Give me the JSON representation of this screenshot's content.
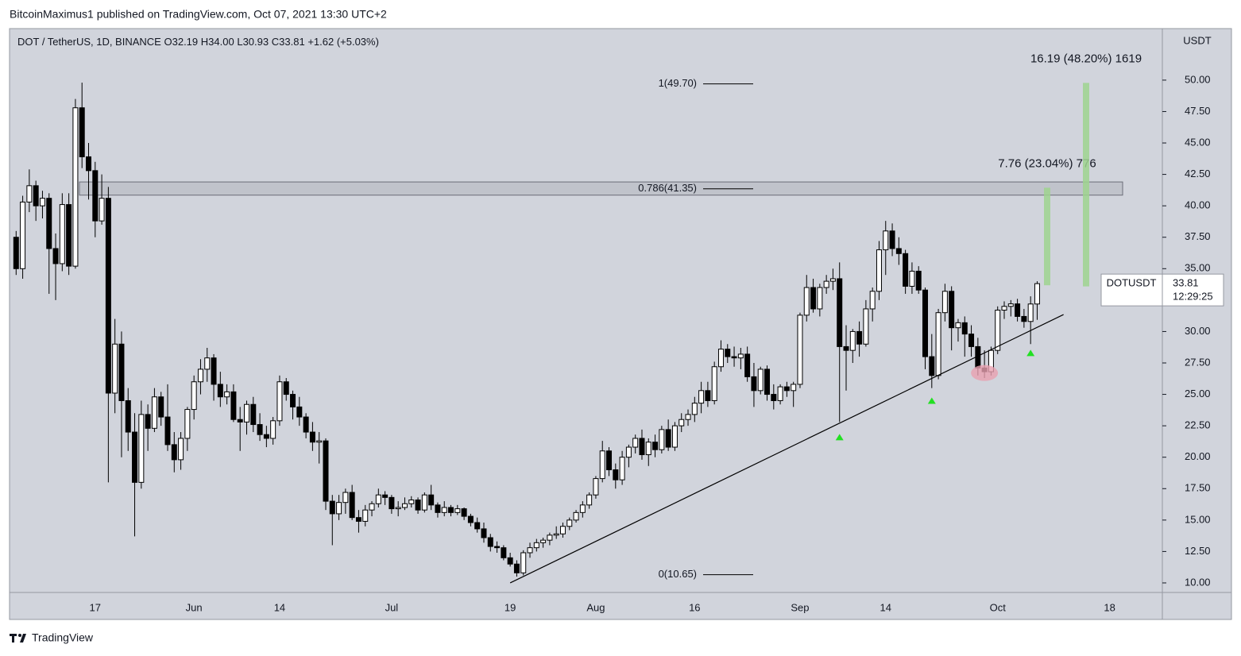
{
  "header": {
    "published": "BitcoinMaximus1 published on TradingView.com, Oct 07, 2021 13:30 UTC+2",
    "brand": "TradingView"
  },
  "chart_data": {
    "type": "candlestick",
    "title": "DOT / TetherUS, 1D, BINANCE",
    "ohlc_header": [
      {
        "key": "O",
        "value": "32.19"
      },
      {
        "key": "H",
        "value": "34.00"
      },
      {
        "key": "L",
        "value": "30.93"
      },
      {
        "key": "C",
        "value": "33.81"
      }
    ],
    "change": "+1.62 (+5.03%)",
    "y_unit": "USDT",
    "symbol": "DOTUSDT",
    "countdown": "12:29:25",
    "x": [
      "2021-05-05",
      "2021-05-06",
      "2021-05-07",
      "2021-05-08",
      "2021-05-09",
      "2021-05-10",
      "2021-05-11",
      "2021-05-12",
      "2021-05-13",
      "2021-05-14",
      "2021-05-15",
      "2021-05-16",
      "2021-05-17",
      "2021-05-18",
      "2021-05-19",
      "2021-05-20",
      "2021-05-21",
      "2021-05-22",
      "2021-05-23",
      "2021-05-24",
      "2021-05-25",
      "2021-05-26",
      "2021-05-27",
      "2021-05-28",
      "2021-05-29",
      "2021-05-30",
      "2021-05-31",
      "2021-06-01",
      "2021-06-02",
      "2021-06-03",
      "2021-06-04",
      "2021-06-05",
      "2021-06-06",
      "2021-06-07",
      "2021-06-08",
      "2021-06-09",
      "2021-06-10",
      "2021-06-11",
      "2021-06-12",
      "2021-06-13",
      "2021-06-14",
      "2021-06-15",
      "2021-06-16",
      "2021-06-17",
      "2021-06-18",
      "2021-06-19",
      "2021-06-20",
      "2021-06-21",
      "2021-06-22",
      "2021-06-23",
      "2021-06-24",
      "2021-06-25",
      "2021-06-26",
      "2021-06-27",
      "2021-06-28",
      "2021-06-29",
      "2021-06-30",
      "2021-07-01",
      "2021-07-02",
      "2021-07-03",
      "2021-07-04",
      "2021-07-05",
      "2021-07-06",
      "2021-07-07",
      "2021-07-08",
      "2021-07-09",
      "2021-07-10",
      "2021-07-11",
      "2021-07-12",
      "2021-07-13",
      "2021-07-14",
      "2021-07-15",
      "2021-07-16",
      "2021-07-17",
      "2021-07-18",
      "2021-07-19",
      "2021-07-20",
      "2021-07-21",
      "2021-07-22",
      "2021-07-23",
      "2021-07-24",
      "2021-07-25",
      "2021-07-26",
      "2021-07-27",
      "2021-07-28",
      "2021-07-29",
      "2021-07-30",
      "2021-07-31",
      "2021-08-01",
      "2021-08-02",
      "2021-08-03",
      "2021-08-04",
      "2021-08-05",
      "2021-08-06",
      "2021-08-07",
      "2021-08-08",
      "2021-08-09",
      "2021-08-10",
      "2021-08-11",
      "2021-08-12",
      "2021-08-13",
      "2021-08-14",
      "2021-08-15",
      "2021-08-16",
      "2021-08-17",
      "2021-08-18",
      "2021-08-19",
      "2021-08-20",
      "2021-08-21",
      "2021-08-22",
      "2021-08-23",
      "2021-08-24",
      "2021-08-25",
      "2021-08-26",
      "2021-08-27",
      "2021-08-28",
      "2021-08-29",
      "2021-08-30",
      "2021-08-31",
      "2021-09-01",
      "2021-09-02",
      "2021-09-03",
      "2021-09-04",
      "2021-09-05",
      "2021-09-06",
      "2021-09-07",
      "2021-09-08",
      "2021-09-09",
      "2021-09-10",
      "2021-09-11",
      "2021-09-12",
      "2021-09-13",
      "2021-09-14",
      "2021-09-15",
      "2021-09-16",
      "2021-09-17",
      "2021-09-18",
      "2021-09-19",
      "2021-09-20",
      "2021-09-21",
      "2021-09-22",
      "2021-09-23",
      "2021-09-24",
      "2021-09-25",
      "2021-09-26",
      "2021-09-27",
      "2021-09-28",
      "2021-09-29",
      "2021-09-30",
      "2021-10-01",
      "2021-10-02",
      "2021-10-03",
      "2021-10-04",
      "2021-10-05",
      "2021-10-06",
      "2021-10-07"
    ],
    "open": [
      37.5,
      35.0,
      40.3,
      41.6,
      40.0,
      40.6,
      36.6,
      35.4,
      40.1,
      35.2,
      47.8,
      43.9,
      42.8,
      38.8,
      40.6,
      25.1,
      29.0,
      24.5,
      22.0,
      18.0,
      23.4,
      22.3,
      24.8,
      23.2,
      21.0,
      19.8,
      21.5,
      23.8,
      26.0,
      27.0,
      27.9,
      25.8,
      24.8,
      25.2,
      23.0,
      22.8,
      24.2,
      22.6,
      21.8,
      21.5,
      22.9,
      26.0,
      25.0,
      24.0,
      23.2,
      22.0,
      21.2,
      21.3,
      16.5,
      15.5,
      16.4,
      17.2,
      15.2,
      14.9,
      15.8,
      16.3,
      17.0,
      16.8,
      15.9,
      16.0,
      16.3,
      16.6,
      15.8,
      17.0,
      16.2,
      15.6,
      16.0,
      15.6,
      15.9,
      15.3,
      14.8,
      14.3,
      13.6,
      12.9,
      12.8,
      12.0,
      11.5,
      10.8,
      12.4,
      12.8,
      13.2,
      13.4,
      13.8,
      13.9,
      14.5,
      15.0,
      15.6,
      16.2,
      17.0,
      18.3,
      20.5,
      19.0,
      18.2,
      20.0,
      20.8,
      21.5,
      20.2,
      21.2,
      20.6,
      22.2,
      20.8,
      22.5,
      23.0,
      23.4,
      24.3,
      25.3,
      24.5,
      27.2,
      28.6,
      28.0,
      27.9,
      28.2,
      26.4,
      25.3,
      27.0,
      25.0,
      24.5,
      25.6,
      25.3,
      25.8,
      31.3,
      33.5,
      31.8,
      33.5,
      34.0,
      34.2,
      28.8,
      28.5,
      30.0,
      29.0,
      31.8,
      33.2,
      36.5,
      38.0,
      36.6,
      36.2,
      33.6,
      34.8,
      33.3,
      28.0,
      26.5,
      31.5,
      33.2,
      30.3,
      30.7,
      29.8,
      28.8,
      27.1,
      26.8,
      28.5,
      31.7,
      32.0,
      32.2,
      31.2,
      30.8,
      32.19
    ],
    "high": [
      38.0,
      40.8,
      42.9,
      42.0,
      41.2,
      41.0,
      37.8,
      41.0,
      41.0,
      48.5,
      49.8,
      45.0,
      43.5,
      42.5,
      41.5,
      31.0,
      30.0,
      25.5,
      23.5,
      24.5,
      24.2,
      25.5,
      25.2,
      25.8,
      22.0,
      22.0,
      24.0,
      26.5,
      27.8,
      28.7,
      28.2,
      26.8,
      25.8,
      25.8,
      24.0,
      24.5,
      24.8,
      23.5,
      22.5,
      23.2,
      26.5,
      26.3,
      25.3,
      24.8,
      23.5,
      22.8,
      22.0,
      21.5,
      17.0,
      17.0,
      17.5,
      17.8,
      15.8,
      16.2,
      16.5,
      17.5,
      17.3,
      17.0,
      16.5,
      16.8,
      16.9,
      16.8,
      17.2,
      17.8,
      16.4,
      16.5,
      16.2,
      16.2,
      16.0,
      15.5,
      15.2,
      14.8,
      13.9,
      13.3,
      13.0,
      12.4,
      11.8,
      12.6,
      13.2,
      13.5,
      13.6,
      14.0,
      14.5,
      14.8,
      15.2,
      15.8,
      16.5,
      17.2,
      18.5,
      21.3,
      20.8,
      19.5,
      20.5,
      21.0,
      21.8,
      22.2,
      21.5,
      21.8,
      22.5,
      23.0,
      22.8,
      23.5,
      23.8,
      24.8,
      26.0,
      26.0,
      27.6,
      29.3,
      29.0,
      28.8,
      28.7,
      28.8,
      27.5,
      27.2,
      27.3,
      25.8,
      25.8,
      26.0,
      26.0,
      31.5,
      34.5,
      34.2,
      33.8,
      34.5,
      35.0,
      35.5,
      30.5,
      30.2,
      30.8,
      32.5,
      33.5,
      37.2,
      38.8,
      38.6,
      37.5,
      36.5,
      35.5,
      35.2,
      33.5,
      29.8,
      31.8,
      33.8,
      33.6,
      31.0,
      31.2,
      30.5,
      29.5,
      28.5,
      28.8,
      32.0,
      32.4,
      32.5,
      32.6,
      31.8,
      32.8,
      34.0
    ],
    "low": [
      34.5,
      34.2,
      39.5,
      38.8,
      39.0,
      33.0,
      32.5,
      34.8,
      34.5,
      35.0,
      43.0,
      40.5,
      37.5,
      38.5,
      18.0,
      23.5,
      20.0,
      20.5,
      13.7,
      17.5,
      20.5,
      22.0,
      22.5,
      20.5,
      18.8,
      19.0,
      20.5,
      23.0,
      25.0,
      26.0,
      24.5,
      24.0,
      24.2,
      22.8,
      20.5,
      21.8,
      22.0,
      21.3,
      20.8,
      21.0,
      22.5,
      24.5,
      23.0,
      22.5,
      21.5,
      20.5,
      19.5,
      15.8,
      13.0,
      15.0,
      15.5,
      15.0,
      14.0,
      14.5,
      15.3,
      16.0,
      16.2,
      15.5,
      15.3,
      15.8,
      16.0,
      15.5,
      15.6,
      15.8,
      15.2,
      15.3,
      15.3,
      15.4,
      15.0,
      14.5,
      14.0,
      13.2,
      12.5,
      12.4,
      11.8,
      11.3,
      10.5,
      10.6,
      12.0,
      12.5,
      12.8,
      13.0,
      13.5,
      13.6,
      14.2,
      14.8,
      15.2,
      15.9,
      16.7,
      18.0,
      18.5,
      17.5,
      17.8,
      19.2,
      20.3,
      19.8,
      19.3,
      20.0,
      20.3,
      20.5,
      20.5,
      22.0,
      22.5,
      22.8,
      23.5,
      24.0,
      24.2,
      26.8,
      27.5,
      27.2,
      27.0,
      26.0,
      24.0,
      25.0,
      24.5,
      23.8,
      24.2,
      24.8,
      24.0,
      25.5,
      30.8,
      31.5,
      31.2,
      33.0,
      33.3,
      22.8,
      25.3,
      27.5,
      28.0,
      28.8,
      30.8,
      32.5,
      34.5,
      36.0,
      35.3,
      33.0,
      33.0,
      33.0,
      27.0,
      25.5,
      26.2,
      30.8,
      28.5,
      29.2,
      28.0,
      28.0,
      26.5,
      26.3,
      26.5,
      28.2,
      31.0,
      31.2,
      30.8,
      30.3,
      29.0,
      30.93
    ],
    "close": [
      35.0,
      40.3,
      41.6,
      40.0,
      40.6,
      36.6,
      35.4,
      40.1,
      35.2,
      47.8,
      43.9,
      42.8,
      38.8,
      40.6,
      25.1,
      29.0,
      24.5,
      22.0,
      18.0,
      23.4,
      22.3,
      24.8,
      23.2,
      21.0,
      19.8,
      21.5,
      23.8,
      26.0,
      27.0,
      27.9,
      25.8,
      24.8,
      25.2,
      23.0,
      22.8,
      24.2,
      22.6,
      21.8,
      21.5,
      22.9,
      26.0,
      25.0,
      24.0,
      23.2,
      22.0,
      21.2,
      21.3,
      16.5,
      15.5,
      16.4,
      17.2,
      15.2,
      14.9,
      15.8,
      16.3,
      17.0,
      16.8,
      15.9,
      16.0,
      16.3,
      16.6,
      15.8,
      17.0,
      16.2,
      15.6,
      16.0,
      15.6,
      15.9,
      15.3,
      14.8,
      14.3,
      13.6,
      12.9,
      12.8,
      12.0,
      11.5,
      10.8,
      12.4,
      12.8,
      13.2,
      13.4,
      13.8,
      13.9,
      14.5,
      15.0,
      15.6,
      16.2,
      17.0,
      18.3,
      20.5,
      19.0,
      18.2,
      20.0,
      20.8,
      21.5,
      20.2,
      21.2,
      20.6,
      22.2,
      20.8,
      22.5,
      23.0,
      23.4,
      24.3,
      25.3,
      24.5,
      27.2,
      28.6,
      28.0,
      27.9,
      28.2,
      26.4,
      25.3,
      27.0,
      25.0,
      24.5,
      25.6,
      25.3,
      25.8,
      31.3,
      33.5,
      31.8,
      33.5,
      34.0,
      34.2,
      28.8,
      28.5,
      30.0,
      29.0,
      31.8,
      33.2,
      36.5,
      38.0,
      36.6,
      36.2,
      33.6,
      34.8,
      33.3,
      28.0,
      26.5,
      31.5,
      33.2,
      30.3,
      30.7,
      29.8,
      28.8,
      27.1,
      26.8,
      28.5,
      31.7,
      32.0,
      32.2,
      31.2,
      30.8,
      32.19,
      33.81
    ],
    "up_color": "#ffffff",
    "down_color": "#000000",
    "wick_color": "#000000",
    "xlim": [
      "2021-05-04",
      "2021-10-26"
    ],
    "xticks": [
      {
        "value": "2021-05-17",
        "label": "17"
      },
      {
        "value": "2021-06-01",
        "label": "Jun"
      },
      {
        "value": "2021-06-14",
        "label": "14"
      },
      {
        "value": "2021-07-01",
        "label": "Jul"
      },
      {
        "value": "2021-07-19",
        "label": "19"
      },
      {
        "value": "2021-08-01",
        "label": "Aug"
      },
      {
        "value": "2021-08-16",
        "label": "16"
      },
      {
        "value": "2021-09-01",
        "label": "Sep"
      },
      {
        "value": "2021-09-14",
        "label": "14"
      },
      {
        "value": "2021-10-01",
        "label": "Oct"
      },
      {
        "value": "2021-10-18",
        "label": "18"
      }
    ],
    "ylim": [
      9.24,
      54.1
    ],
    "yticks": [
      {
        "value": 10,
        "label": "10.00"
      },
      {
        "value": 12.5,
        "label": "12.50"
      },
      {
        "value": 15,
        "label": "15.00"
      },
      {
        "value": 17.5,
        "label": "17.50"
      },
      {
        "value": 20,
        "label": "20.00"
      },
      {
        "value": 22.5,
        "label": "22.50"
      },
      {
        "value": 25,
        "label": "25.00"
      },
      {
        "value": 27.5,
        "label": "27.50"
      },
      {
        "value": 30,
        "label": "30.00"
      },
      {
        "value": 32.5,
        "label": "32.50"
      },
      {
        "value": 35,
        "label": "35.00"
      },
      {
        "value": 37.5,
        "label": "37.50"
      },
      {
        "value": 40,
        "label": "40.00"
      },
      {
        "value": 42.5,
        "label": "42.50"
      },
      {
        "value": 45,
        "label": "45.00"
      },
      {
        "value": 47.5,
        "label": "47.50"
      },
      {
        "value": 50,
        "label": "50.00"
      }
    ],
    "grid": false,
    "fib_levels": [
      {
        "label": "1(49.70)",
        "value": 49.7
      },
      {
        "label": "0.786(41.35)",
        "value": 41.35
      },
      {
        "label": "0(10.65)",
        "value": 10.65
      }
    ],
    "zone": [
      40.85,
      41.9
    ],
    "measurements": [
      {
        "label": "7.76 (23.04%) 776",
        "from": 33.68,
        "to": 41.44,
        "color": "#9fd48f"
      },
      {
        "label": "16.19 (48.20%) 1619",
        "from": 33.59,
        "to": 49.78,
        "color": "#9fd48f"
      }
    ],
    "trendline": [
      {
        "date": "2021-07-19",
        "value": 10.0
      },
      {
        "date": "2021-10-11",
        "value": 31.35
      }
    ],
    "markers": [
      {
        "date": "2021-09-07",
        "value": 21.6
      },
      {
        "date": "2021-09-21",
        "value": 24.5
      },
      {
        "date": "2021-10-06",
        "value": 28.3
      }
    ],
    "marker_color": "#22e022",
    "highlight": {
      "date": "2021-09-29",
      "value": 26.7,
      "color": "#e8a0b0"
    }
  }
}
